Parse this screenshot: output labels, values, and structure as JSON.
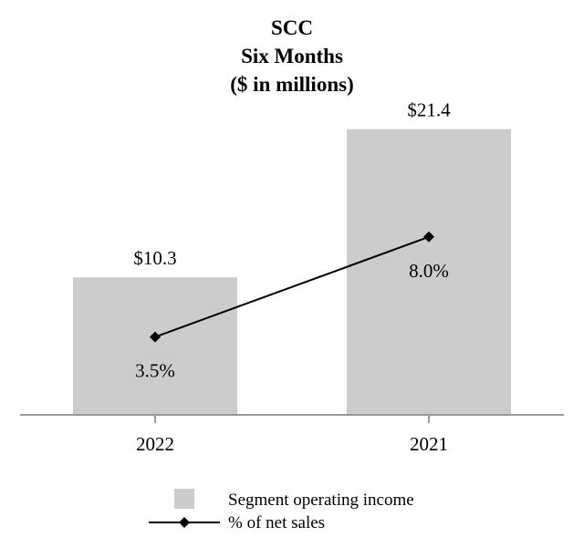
{
  "chart_data": {
    "type": "bar",
    "title": [
      "SCC",
      "Six Months",
      "($ in millions)"
    ],
    "categories": [
      "2022",
      "2021"
    ],
    "series": [
      {
        "name": "Segment operating income",
        "kind": "bar",
        "values": [
          10.3,
          21.4
        ],
        "labels": [
          "$10.3",
          "$21.4"
        ],
        "color": "#cccccc"
      },
      {
        "name": "% of net sales",
        "kind": "line",
        "values": [
          3.5,
          8.0
        ],
        "labels": [
          "3.5%",
          "8.0%"
        ],
        "color": "#000000"
      }
    ],
    "ylim": [
      0,
      25
    ],
    "y2lim": [
      0,
      15
    ],
    "grid": false,
    "legend_position": "bottom-center"
  }
}
